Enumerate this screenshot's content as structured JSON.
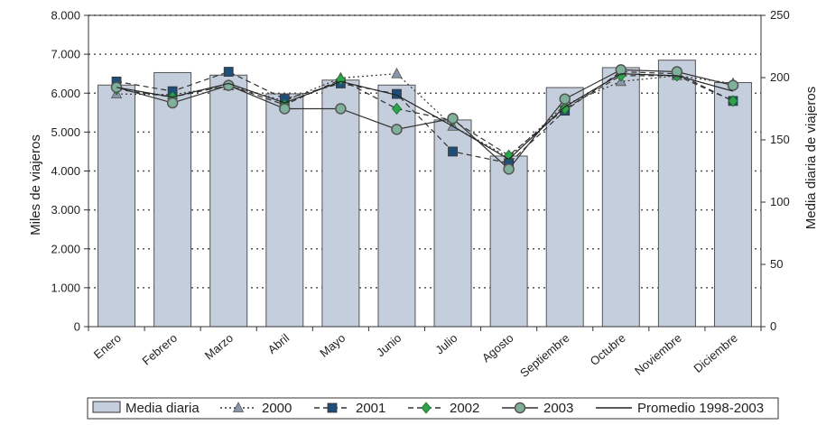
{
  "chart_data": {
    "type": "bar",
    "categories": [
      "Enero",
      "Febrero",
      "Marzo",
      "Abril",
      "Mayo",
      "Junio",
      "Julio",
      "Agosto",
      "Septiembre",
      "Octubre",
      "Noviembre",
      "Diciembre"
    ],
    "bar_series": {
      "name": "Media diaria",
      "axis": "right",
      "values": [
        194,
        204,
        202,
        187,
        198,
        194,
        166,
        137,
        192,
        208,
        214,
        196
      ],
      "color": "#c5cedc"
    },
    "series": [
      {
        "name": "2000",
        "axis": "left",
        "style": "dotted",
        "marker": "triangle",
        "color": "#8a96aa",
        "values": [
          5980,
          5960,
          6190,
          5800,
          6390,
          6500,
          5150,
          4350,
          5700,
          6300,
          6450,
          6250
        ]
      },
      {
        "name": "2001",
        "axis": "left",
        "style": "dashed",
        "marker": "square",
        "color": "#1f4e7a",
        "values": [
          6300,
          6050,
          6550,
          5850,
          6250,
          5980,
          4500,
          4200,
          5550,
          6550,
          6500,
          5800
        ]
      },
      {
        "name": "2002",
        "axis": "left",
        "style": "dashed",
        "marker": "diamond",
        "color": "#2ea34a",
        "values": [
          6100,
          5900,
          6200,
          5700,
          6350,
          5600,
          5300,
          4400,
          5600,
          6450,
          6450,
          5800
        ]
      },
      {
        "name": "2003",
        "axis": "left",
        "style": "solid",
        "marker": "circle",
        "color": "#7fb09a",
        "values": [
          6150,
          5750,
          6200,
          5600,
          5600,
          5070,
          5350,
          4050,
          5850,
          6600,
          6550,
          6200
        ]
      },
      {
        "name": "Promedio 1998-2003",
        "axis": "left",
        "style": "solid",
        "marker": "none",
        "color": "#222222",
        "values": [
          6150,
          5900,
          6250,
          5750,
          6300,
          5950,
          5150,
          4300,
          5650,
          6500,
          6450,
          6050
        ]
      }
    ],
    "left_axis": {
      "label": "Miles de viajeros",
      "min": 0,
      "max": 8000,
      "ticks": [
        {
          "v": 0,
          "t": "0"
        },
        {
          "v": 1000,
          "t": "1.000"
        },
        {
          "v": 2000,
          "t": "2.000"
        },
        {
          "v": 3000,
          "t": "3.000"
        },
        {
          "v": 4000,
          "t": "4.000"
        },
        {
          "v": 5000,
          "t": "5.000"
        },
        {
          "v": 6000,
          "t": "6.000"
        },
        {
          "v": 7000,
          "t": "7.000"
        },
        {
          "v": 8000,
          "t": "8.000"
        }
      ]
    },
    "right_axis": {
      "label": "Media diaria de viajeros",
      "min": 0,
      "max": 250,
      "ticks": [
        {
          "v": 0,
          "t": "0"
        },
        {
          "v": 50,
          "t": "50"
        },
        {
          "v": 100,
          "t": "100"
        },
        {
          "v": 150,
          "t": "150"
        },
        {
          "v": 200,
          "t": "200"
        },
        {
          "v": 250,
          "t": "250"
        }
      ]
    },
    "grid": "dotted horizontal",
    "legend_position": "bottom"
  }
}
